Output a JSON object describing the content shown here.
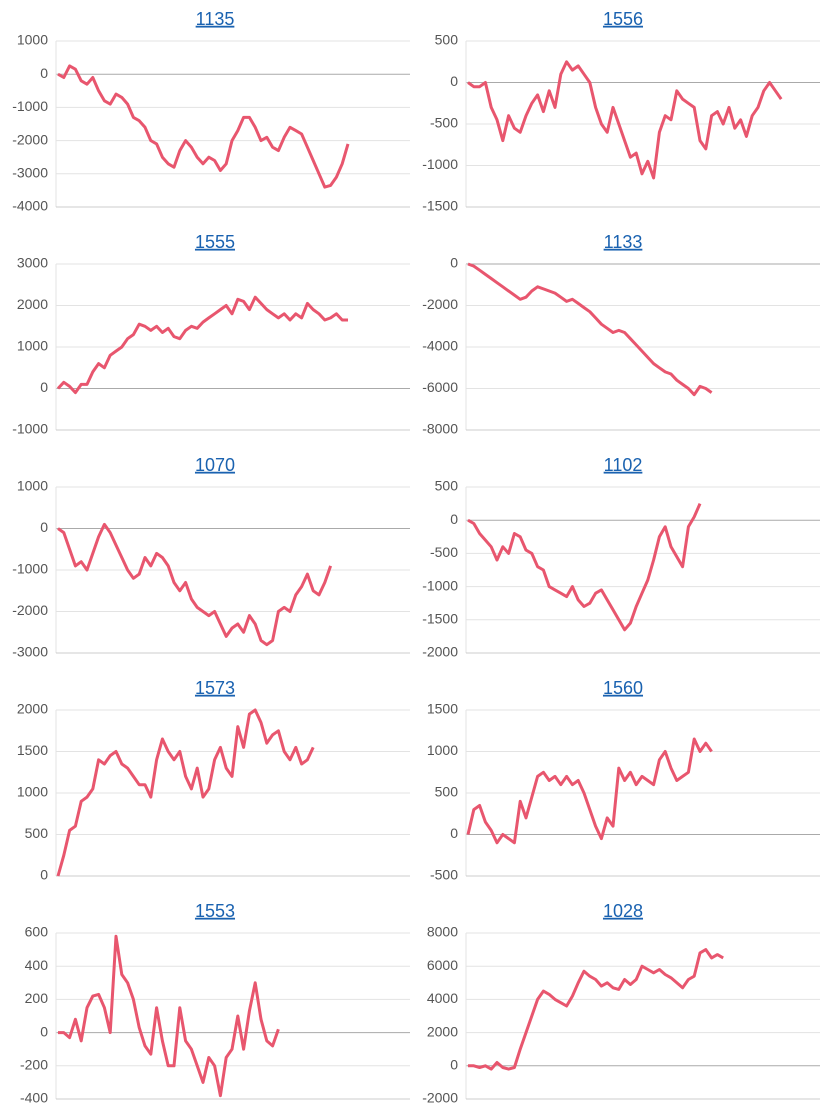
{
  "chart_data": [
    {
      "type": "line",
      "title": "1135",
      "color": "#e8566e",
      "grid": true,
      "ylim": [
        -4000,
        1000
      ],
      "yticks": [
        1000,
        0,
        -1000,
        -2000,
        -3000,
        -4000
      ],
      "values": [
        0,
        -100,
        250,
        150,
        -200,
        -300,
        -100,
        -500,
        -800,
        -900,
        -600,
        -700,
        -900,
        -1300,
        -1400,
        -1600,
        -2000,
        -2100,
        -2500,
        -2700,
        -2800,
        -2300,
        -2000,
        -2200,
        -2500,
        -2700,
        -2500,
        -2600,
        -2900,
        -2700,
        -2000,
        -1700,
        -1300,
        -1300,
        -1600,
        -2000,
        -1900,
        -2200,
        -2300,
        -1900,
        -1600,
        -1700,
        -1800,
        -2200,
        -2600,
        -3000,
        -3400,
        -3350,
        -3100,
        -2700,
        -2100
      ]
    },
    {
      "type": "line",
      "title": "1556",
      "color": "#e8566e",
      "grid": true,
      "ylim": [
        -1500,
        500
      ],
      "yticks": [
        500,
        0,
        -500,
        -1000,
        -1500
      ],
      "values": [
        0,
        -50,
        -50,
        0,
        -300,
        -450,
        -700,
        -400,
        -550,
        -600,
        -400,
        -250,
        -150,
        -350,
        -100,
        -300,
        100,
        250,
        150,
        200,
        100,
        0,
        -300,
        -500,
        -600,
        -300,
        -500,
        -700,
        -900,
        -850,
        -1100,
        -950,
        -1150,
        -600,
        -400,
        -450,
        -100,
        -200,
        -250,
        -300,
        -700,
        -800,
        -400,
        -350,
        -500,
        -300,
        -550,
        -450,
        -650,
        -400,
        -300,
        -100,
        0,
        -100,
        -200
      ]
    },
    {
      "type": "line",
      "title": "1555",
      "color": "#e8566e",
      "grid": true,
      "ylim": [
        -1000,
        3000
      ],
      "yticks": [
        3000,
        2000,
        1000,
        0,
        -1000
      ],
      "values": [
        0,
        150,
        50,
        -100,
        100,
        100,
        400,
        600,
        500,
        800,
        900,
        1000,
        1200,
        1300,
        1550,
        1500,
        1400,
        1500,
        1350,
        1450,
        1250,
        1200,
        1400,
        1500,
        1450,
        1600,
        1700,
        1800,
        1900,
        2000,
        1800,
        2150,
        2100,
        1900,
        2200,
        2050,
        1900,
        1800,
        1700,
        1800,
        1650,
        1800,
        1700,
        2050,
        1900,
        1800,
        1650,
        1700,
        1800,
        1650,
        1650
      ]
    },
    {
      "type": "line",
      "title": "1133",
      "color": "#e8566e",
      "grid": true,
      "ylim": [
        -8000,
        0
      ],
      "yticks": [
        0,
        -2000,
        -4000,
        -6000,
        -8000
      ],
      "values": [
        0,
        -100,
        -300,
        -500,
        -700,
        -900,
        -1100,
        -1300,
        -1500,
        -1700,
        -1600,
        -1300,
        -1100,
        -1200,
        -1300,
        -1400,
        -1600,
        -1800,
        -1700,
        -1900,
        -2100,
        -2300,
        -2600,
        -2900,
        -3100,
        -3300,
        -3200,
        -3300,
        -3600,
        -3900,
        -4200,
        -4500,
        -4800,
        -5000,
        -5200,
        -5300,
        -5600,
        -5800,
        -6000,
        -6300,
        -5900,
        -6000,
        -6200
      ]
    },
    {
      "type": "line",
      "title": "1070",
      "color": "#e8566e",
      "grid": true,
      "ylim": [
        -3000,
        1000
      ],
      "yticks": [
        1000,
        0,
        -1000,
        -2000,
        -3000
      ],
      "values": [
        0,
        -100,
        -500,
        -900,
        -800,
        -1000,
        -600,
        -200,
        100,
        -100,
        -400,
        -700,
        -1000,
        -1200,
        -1100,
        -700,
        -900,
        -600,
        -700,
        -900,
        -1300,
        -1500,
        -1300,
        -1700,
        -1900,
        -2000,
        -2100,
        -2000,
        -2300,
        -2600,
        -2400,
        -2300,
        -2500,
        -2100,
        -2300,
        -2700,
        -2800,
        -2700,
        -2000,
        -1900,
        -2000,
        -1600,
        -1400,
        -1100,
        -1500,
        -1600,
        -1300,
        -900
      ]
    },
    {
      "type": "line",
      "title": "1102",
      "color": "#e8566e",
      "grid": true,
      "ylim": [
        -2000,
        500
      ],
      "yticks": [
        500,
        0,
        -500,
        -1000,
        -1500,
        -2000
      ],
      "values": [
        0,
        -50,
        -200,
        -300,
        -400,
        -600,
        -400,
        -500,
        -200,
        -250,
        -450,
        -500,
        -700,
        -750,
        -1000,
        -1050,
        -1100,
        -1150,
        -1000,
        -1200,
        -1300,
        -1250,
        -1100,
        -1050,
        -1200,
        -1350,
        -1500,
        -1650,
        -1550,
        -1300,
        -1100,
        -900,
        -600,
        -250,
        -100,
        -400,
        -550,
        -700,
        -100,
        50,
        250
      ]
    },
    {
      "type": "line",
      "title": "1573",
      "color": "#e8566e",
      "grid": true,
      "ylim": [
        0,
        2000
      ],
      "yticks": [
        2000,
        1500,
        1000,
        500,
        0
      ],
      "values": [
        0,
        250,
        550,
        600,
        900,
        950,
        1050,
        1400,
        1350,
        1450,
        1500,
        1350,
        1300,
        1200,
        1100,
        1100,
        950,
        1400,
        1650,
        1500,
        1400,
        1500,
        1200,
        1050,
        1300,
        950,
        1050,
        1400,
        1550,
        1300,
        1200,
        1800,
        1550,
        1950,
        2000,
        1850,
        1600,
        1700,
        1750,
        1500,
        1400,
        1550,
        1350,
        1400,
        1550
      ]
    },
    {
      "type": "line",
      "title": "1560",
      "color": "#e8566e",
      "grid": true,
      "ylim": [
        -500,
        1500
      ],
      "yticks": [
        1500,
        1000,
        500,
        0,
        -500
      ],
      "values": [
        0,
        300,
        350,
        150,
        50,
        -100,
        0,
        -50,
        -100,
        400,
        200,
        450,
        700,
        750,
        650,
        700,
        600,
        700,
        600,
        650,
        500,
        300,
        100,
        -50,
        200,
        100,
        800,
        650,
        750,
        600,
        700,
        650,
        600,
        900,
        1000,
        800,
        650,
        700,
        750,
        1150,
        1000,
        1100,
        1000
      ]
    },
    {
      "type": "line",
      "title": "1553",
      "color": "#e8566e",
      "grid": true,
      "ylim": [
        -400,
        600
      ],
      "yticks": [
        600,
        400,
        200,
        0,
        -200,
        -400
      ],
      "values": [
        0,
        0,
        -30,
        80,
        -50,
        150,
        220,
        230,
        150,
        0,
        580,
        350,
        300,
        200,
        30,
        -80,
        -130,
        150,
        -50,
        -200,
        -200,
        150,
        -50,
        -100,
        -200,
        -300,
        -150,
        -200,
        -380,
        -150,
        -100,
        100,
        -100,
        130,
        300,
        80,
        -50,
        -80,
        20
      ]
    },
    {
      "type": "line",
      "title": "1028",
      "color": "#e8566e",
      "grid": true,
      "ylim": [
        -2000,
        8000
      ],
      "yticks": [
        8000,
        6000,
        4000,
        2000,
        0,
        -2000
      ],
      "values": [
        0,
        0,
        -100,
        0,
        -200,
        200,
        -100,
        -200,
        -100,
        1000,
        2000,
        3000,
        4000,
        4500,
        4300,
        4000,
        3800,
        3600,
        4200,
        5000,
        5700,
        5400,
        5200,
        4800,
        5000,
        4700,
        4600,
        5200,
        4900,
        5200,
        6000,
        5800,
        5600,
        5800,
        5500,
        5300,
        5000,
        4700,
        5200,
        5400,
        6800,
        7000,
        6500,
        6700,
        6500
      ]
    }
  ]
}
